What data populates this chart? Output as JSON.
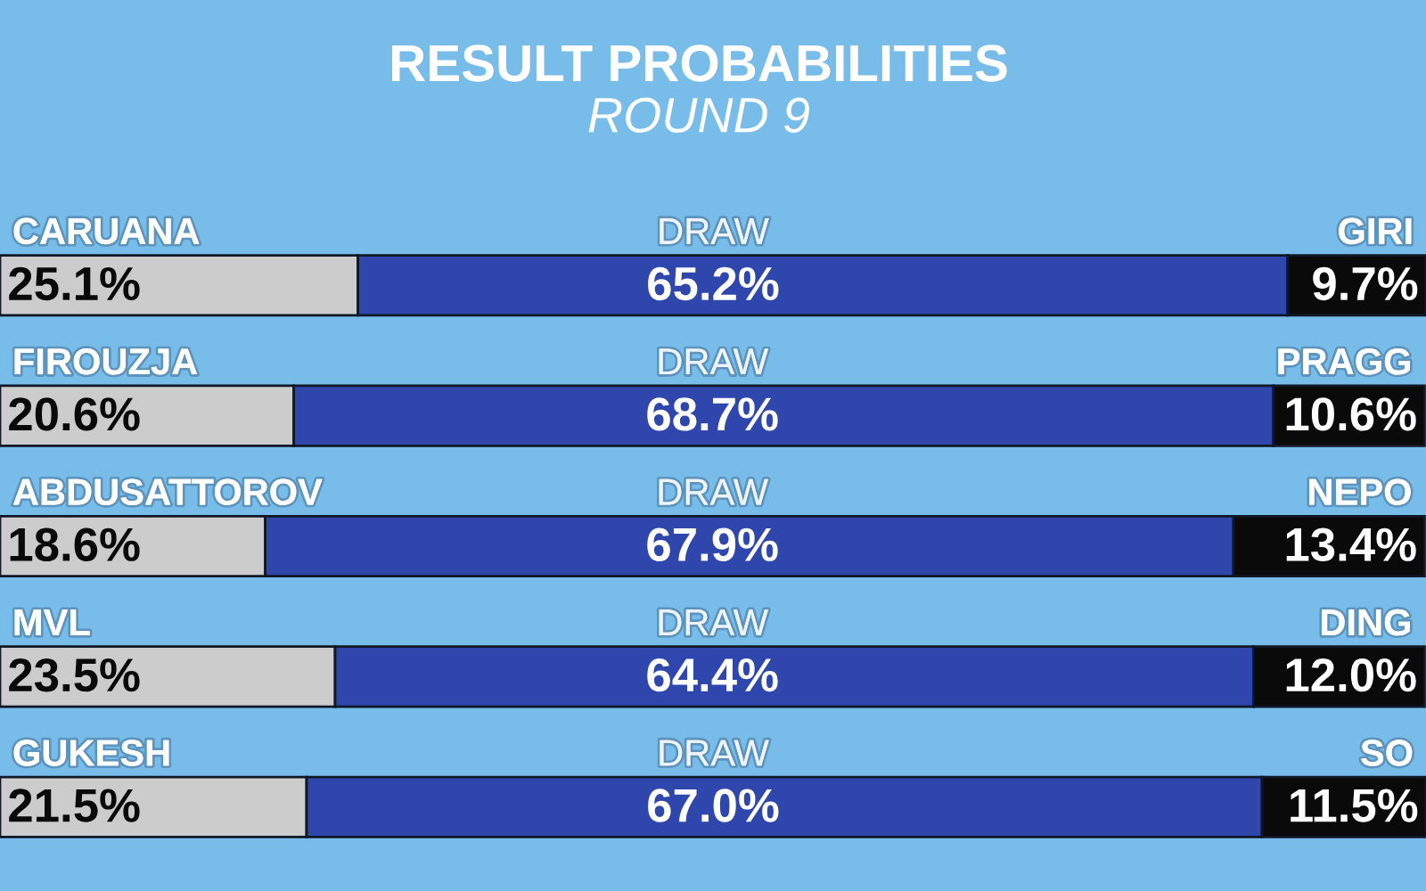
{
  "chart_data": {
    "type": "bar",
    "orientation": "horizontal",
    "stacked": true,
    "title": "RESULT PROBABILITIES",
    "subtitle": "ROUND 9",
    "categories": [
      "CARUANA",
      "FIROUZJA",
      "ABDUSATTOROV",
      "MVL",
      "GUKESH"
    ],
    "series": [
      {
        "color": "#cccccc",
        "values": [
          25.1,
          20.6,
          18.6,
          23.5,
          21.5
        ],
        "value_labels": [
          "25.1%",
          "20.6%",
          "18.6%",
          "23.5%",
          "21.5%"
        ]
      },
      {
        "name": "DRAW",
        "color": "#2f47ad",
        "values": [
          65.2,
          68.7,
          67.9,
          64.4,
          67.0
        ],
        "value_labels": [
          "65.2%",
          "68.7%",
          "67.9%",
          "64.4%",
          "67.0%"
        ]
      },
      {
        "color": "#0a0a0a",
        "values": [
          9.7,
          10.6,
          13.4,
          12.0,
          11.5
        ],
        "value_labels": [
          "9.7%",
          "10.6%",
          "13.4%",
          "12.0%",
          "11.5%"
        ]
      }
    ],
    "annotations": [
      "GIRI",
      "PRAGG",
      "NEPO",
      "DING",
      "SO"
    ],
    "xlim": [
      0,
      100
    ],
    "tick_labels": false
  }
}
